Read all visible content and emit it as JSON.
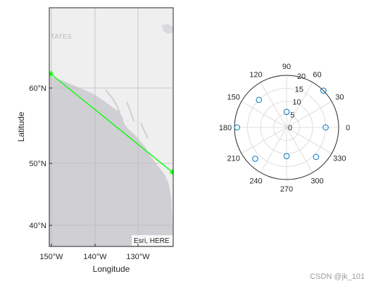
{
  "map": {
    "xlabel": "Longitude",
    "ylabel": "Latitude",
    "x_ticks": [
      "150°W",
      "140°W",
      "130°W"
    ],
    "y_ticks": [
      "60°N",
      "50°N",
      "40°N"
    ],
    "attribution": "Esri, HERE",
    "basemap_label": "TATES",
    "colors": {
      "land": "#efefef",
      "ocean": "#cfcfd4",
      "route": "#00ff00",
      "grid": "#bdbdbd"
    }
  },
  "chart_data": [
    {
      "type": "line",
      "title": "",
      "xlabel": "Longitude",
      "ylabel": "Latitude",
      "xlim": [
        -150.3,
        -122.1
      ],
      "ylim": [
        37,
        71
      ],
      "grid": true,
      "series": [
        {
          "x": [
            -150,
            -122.3
          ],
          "y": [
            61.6,
            47.6
          ],
          "marker": "asterisk"
        }
      ]
    },
    {
      "type": "scatter",
      "subtype": "polar",
      "theta_ticks": [
        "0",
        "30",
        "60",
        "90",
        "120",
        "150",
        "180",
        "210",
        "240",
        "270",
        "300",
        "330"
      ],
      "r_ticks": [
        "0",
        "5",
        "10",
        "15",
        "20"
      ],
      "rlim": [
        0,
        20
      ],
      "grid": true,
      "series": [
        {
          "theta_deg": [
            0,
            45,
            90,
            135,
            180,
            225,
            270,
            315
          ],
          "r": [
            15,
            20,
            6,
            15,
            19,
            17,
            11,
            16
          ],
          "marker": "circle"
        }
      ]
    }
  ],
  "watermark": "CSDN @jk_101"
}
